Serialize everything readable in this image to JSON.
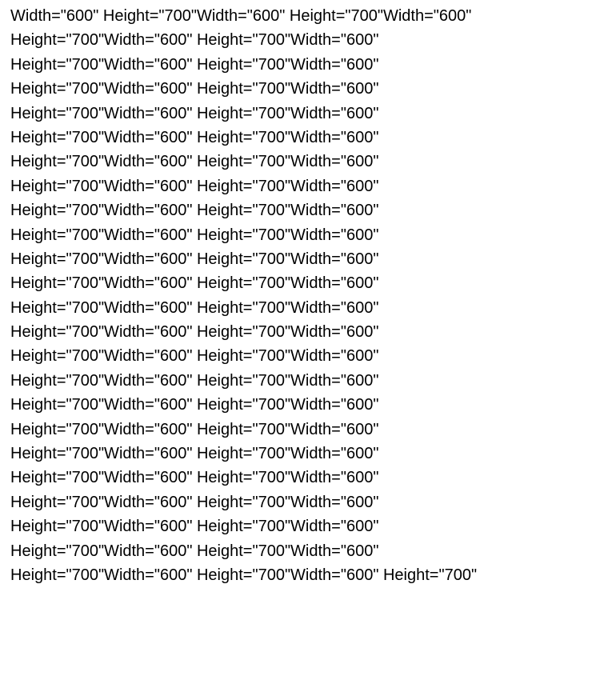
{
  "document": {
    "lines": [
      "Width=\"600\" Height=\"700\"Width=\"600\" Height=\"700\"Width=\"600\"",
      "Height=\"700\"Width=\"600\" Height=\"700\"Width=\"600\"",
      "Height=\"700\"Width=\"600\" Height=\"700\"Width=\"600\"",
      "Height=\"700\"Width=\"600\" Height=\"700\"Width=\"600\"",
      "Height=\"700\"Width=\"600\" Height=\"700\"Width=\"600\"",
      "Height=\"700\"Width=\"600\" Height=\"700\"Width=\"600\"",
      "Height=\"700\"Width=\"600\" Height=\"700\"Width=\"600\"",
      "Height=\"700\"Width=\"600\" Height=\"700\"Width=\"600\"",
      "Height=\"700\"Width=\"600\" Height=\"700\"Width=\"600\"",
      "Height=\"700\"Width=\"600\" Height=\"700\"Width=\"600\"",
      "Height=\"700\"Width=\"600\" Height=\"700\"Width=\"600\"",
      "Height=\"700\"Width=\"600\" Height=\"700\"Width=\"600\"",
      "Height=\"700\"Width=\"600\" Height=\"700\"Width=\"600\"",
      "Height=\"700\"Width=\"600\" Height=\"700\"Width=\"600\"",
      "Height=\"700\"Width=\"600\" Height=\"700\"Width=\"600\"",
      "Height=\"700\"Width=\"600\" Height=\"700\"Width=\"600\"",
      "Height=\"700\"Width=\"600\" Height=\"700\"Width=\"600\"",
      "Height=\"700\"Width=\"600\" Height=\"700\"Width=\"600\"",
      "Height=\"700\"Width=\"600\" Height=\"700\"Width=\"600\"",
      "Height=\"700\"Width=\"600\" Height=\"700\"Width=\"600\"",
      "Height=\"700\"Width=\"600\" Height=\"700\"Width=\"600\"",
      "Height=\"700\"Width=\"600\" Height=\"700\"Width=\"600\"",
      "Height=\"700\"Width=\"600\" Height=\"700\"Width=\"600\"",
      "Height=\"700\"Width=\"600\" Height=\"700\"Width=\"600\" Height=\"700\""
    ]
  }
}
